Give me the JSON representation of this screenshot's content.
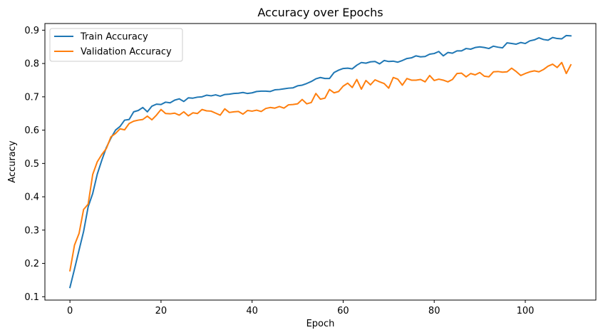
{
  "chart_data": {
    "type": "line",
    "title": "Accuracy over Epochs",
    "xlabel": "Epoch",
    "ylabel": "Accuracy",
    "xlim": [
      -5.5,
      115.5
    ],
    "ylim": [
      0.09,
      0.92
    ],
    "xticks": [
      0,
      20,
      40,
      60,
      80,
      100
    ],
    "yticks": [
      0.1,
      0.2,
      0.3,
      0.4,
      0.5,
      0.6,
      0.7,
      0.8,
      0.9
    ],
    "grid": false,
    "legend_position": "upper-left",
    "x": [
      0,
      1,
      2,
      3,
      4,
      5,
      6,
      7,
      8,
      9,
      10,
      11,
      12,
      13,
      14,
      15,
      16,
      17,
      18,
      19,
      20,
      21,
      22,
      23,
      24,
      25,
      26,
      27,
      28,
      29,
      30,
      31,
      32,
      33,
      34,
      35,
      36,
      37,
      38,
      39,
      40,
      41,
      42,
      43,
      44,
      45,
      46,
      47,
      48,
      49,
      50,
      51,
      52,
      53,
      54,
      55,
      56,
      57,
      58,
      59,
      60,
      61,
      62,
      63,
      64,
      65,
      66,
      67,
      68,
      69,
      70,
      71,
      72,
      73,
      74,
      75,
      76,
      77,
      78,
      79,
      80,
      81,
      82,
      83,
      84,
      85,
      86,
      87,
      88,
      89,
      90,
      91,
      92,
      93,
      94,
      95,
      96,
      97,
      98,
      99,
      100,
      101,
      102,
      103,
      104,
      105,
      106,
      107,
      108,
      109,
      110
    ],
    "series": [
      {
        "name": "Train Accuracy",
        "color": "#1f77b4",
        "values": [
          0.128,
          0.183,
          0.24,
          0.296,
          0.37,
          0.41,
          0.468,
          0.51,
          0.548,
          0.576,
          0.6,
          0.611,
          0.63,
          0.632,
          0.655,
          0.659,
          0.668,
          0.655,
          0.672,
          0.678,
          0.677,
          0.684,
          0.682,
          0.69,
          0.694,
          0.686,
          0.697,
          0.696,
          0.699,
          0.7,
          0.705,
          0.703,
          0.706,
          0.702,
          0.707,
          0.708,
          0.71,
          0.711,
          0.713,
          0.71,
          0.712,
          0.716,
          0.717,
          0.717,
          0.716,
          0.721,
          0.722,
          0.724,
          0.726,
          0.727,
          0.733,
          0.735,
          0.74,
          0.746,
          0.754,
          0.758,
          0.755,
          0.755,
          0.773,
          0.78,
          0.785,
          0.786,
          0.784,
          0.795,
          0.803,
          0.801,
          0.805,
          0.806,
          0.799,
          0.809,
          0.806,
          0.807,
          0.804,
          0.809,
          0.815,
          0.817,
          0.823,
          0.82,
          0.821,
          0.828,
          0.83,
          0.836,
          0.823,
          0.833,
          0.831,
          0.838,
          0.838,
          0.845,
          0.843,
          0.848,
          0.85,
          0.848,
          0.845,
          0.852,
          0.849,
          0.847,
          0.862,
          0.86,
          0.858,
          0.863,
          0.86,
          0.868,
          0.871,
          0.877,
          0.872,
          0.87,
          0.878,
          0.875,
          0.874,
          0.884,
          0.883
        ]
      },
      {
        "name": "Validation Accuracy",
        "color": "#ff7f0e",
        "values": [
          0.178,
          0.255,
          0.29,
          0.362,
          0.378,
          0.467,
          0.505,
          0.527,
          0.545,
          0.58,
          0.59,
          0.604,
          0.601,
          0.62,
          0.627,
          0.63,
          0.632,
          0.642,
          0.631,
          0.645,
          0.662,
          0.65,
          0.649,
          0.651,
          0.645,
          0.655,
          0.643,
          0.652,
          0.65,
          0.662,
          0.658,
          0.657,
          0.651,
          0.645,
          0.664,
          0.653,
          0.655,
          0.656,
          0.648,
          0.659,
          0.657,
          0.66,
          0.656,
          0.665,
          0.668,
          0.666,
          0.671,
          0.666,
          0.676,
          0.677,
          0.679,
          0.692,
          0.679,
          0.683,
          0.71,
          0.693,
          0.696,
          0.722,
          0.712,
          0.716,
          0.732,
          0.741,
          0.728,
          0.752,
          0.723,
          0.749,
          0.736,
          0.751,
          0.745,
          0.74,
          0.726,
          0.758,
          0.753,
          0.735,
          0.755,
          0.75,
          0.75,
          0.752,
          0.745,
          0.764,
          0.749,
          0.753,
          0.75,
          0.745,
          0.752,
          0.77,
          0.771,
          0.76,
          0.77,
          0.766,
          0.773,
          0.762,
          0.76,
          0.775,
          0.776,
          0.774,
          0.775,
          0.786,
          0.776,
          0.764,
          0.77,
          0.775,
          0.778,
          0.775,
          0.782,
          0.792,
          0.798,
          0.788,
          0.803,
          0.77,
          0.796
        ]
      }
    ]
  }
}
